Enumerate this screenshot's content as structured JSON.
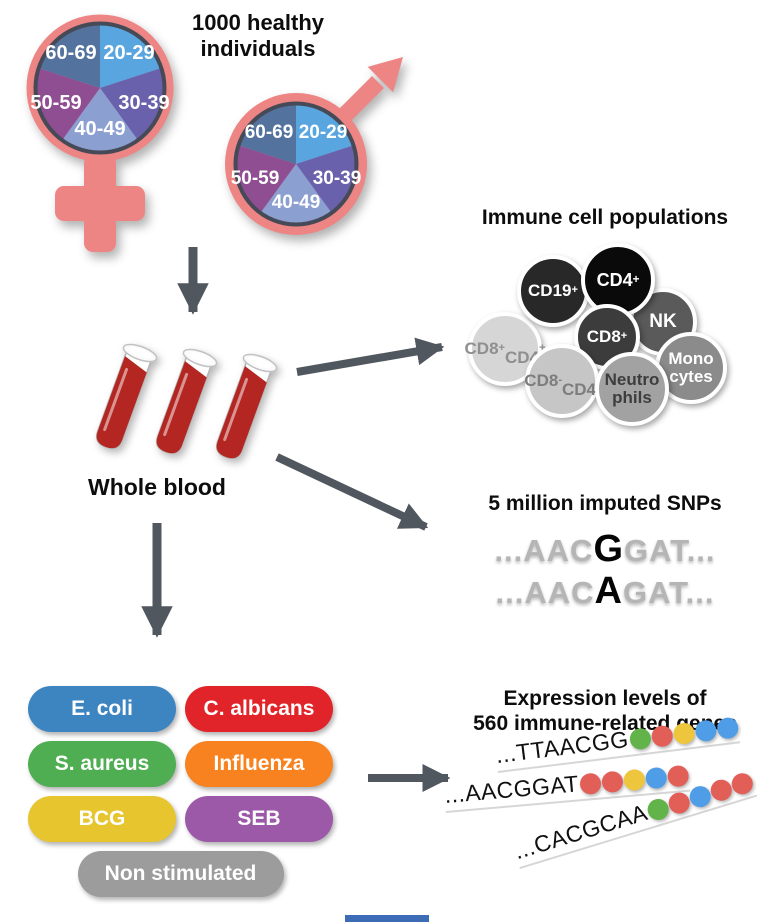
{
  "study_title": "1000 healthy individuals",
  "age_groups": [
    "20-29",
    "30-39",
    "40-49",
    "50-59",
    "60-69"
  ],
  "whole_blood_label": "Whole blood",
  "immune": {
    "title": "Immune cell populations",
    "cells": [
      {
        "name": "cd8pos-cd4pos",
        "lines": [
          [
            {
              "t": "CD8",
              "s": "+"
            }
          ],
          [
            {
              "t": "CD4",
              "s": "+"
            }
          ]
        ],
        "bg": "#d6d6d6",
        "fg": "#8f8f8f"
      },
      {
        "name": "cd19pos",
        "lines": [
          [
            {
              "t": "CD19",
              "s": "+"
            }
          ]
        ],
        "bg": "#282828",
        "fg": "#ffffff"
      },
      {
        "name": "nk",
        "lines": [
          [
            {
              "t": "NK"
            }
          ]
        ],
        "bg": "#5a5a5a",
        "fg": "#ffffff"
      },
      {
        "name": "cd4pos",
        "lines": [
          [
            {
              "t": "CD4",
              "s": "+"
            }
          ]
        ],
        "bg": "#0a0a0a",
        "fg": "#ffffff"
      },
      {
        "name": "monocytes",
        "lines": [
          [
            {
              "t": "Mono"
            }
          ],
          [
            {
              "t": "cytes"
            }
          ]
        ],
        "bg": "#8b8b8b",
        "fg": "#ffffff"
      },
      {
        "name": "cd8pos",
        "lines": [
          [
            {
              "t": "CD8",
              "s": "+"
            }
          ]
        ],
        "bg": "#3c3c3c",
        "fg": "#ffffff"
      },
      {
        "name": "cd8neg-cd4neg",
        "lines": [
          [
            {
              "t": "CD8",
              "s": "-"
            }
          ],
          [
            {
              "t": "CD4",
              "s": "-"
            }
          ]
        ],
        "bg": "#c6c6c6",
        "fg": "#7d7d7d"
      },
      {
        "name": "neutrophils",
        "lines": [
          [
            {
              "t": "Neutro"
            }
          ],
          [
            {
              "t": "phils"
            }
          ]
        ],
        "bg": "#a2a2a2",
        "fg": "#3d3d3d"
      }
    ]
  },
  "snps": {
    "title": "5 million imputed SNPs",
    "rows": [
      {
        "pre": "...AAC",
        "variant": "G",
        "post": "GAT..."
      },
      {
        "pre": "...AAC",
        "variant": "A",
        "post": "GAT..."
      }
    ]
  },
  "stimuli": [
    {
      "label": "E. coli",
      "color": "#3d85c0"
    },
    {
      "label": "C. albicans",
      "color": "#e1242a"
    },
    {
      "label": "S. aureus",
      "color": "#4fae52"
    },
    {
      "label": "Influenza",
      "color": "#f8821f"
    },
    {
      "label": "BCG",
      "color": "#e6c52f"
    },
    {
      "label": "SEB",
      "color": "#9b59a7"
    },
    {
      "label": "Non stimulated",
      "color": "#9c9c9c"
    }
  ],
  "expression": {
    "title_line1": "Expression levels of",
    "title_line2": "560 immune-related genes",
    "rows": [
      {
        "seq": "...TTAACGG",
        "dots": [
          "green",
          "red",
          "yellow",
          "blue",
          "blue"
        ]
      },
      {
        "seq": "...AACGGAT",
        "dots": [
          "red",
          "red",
          "yellow",
          "blue",
          "red"
        ]
      },
      {
        "seq": "...CACGCAA",
        "dots": [
          "green",
          "red",
          "blue",
          "red",
          "red"
        ]
      }
    ],
    "dot_palette": {
      "green": "#62b44a",
      "red": "#e25f58",
      "yellow": "#edc63d",
      "blue": "#4f9de6"
    }
  },
  "colors": {
    "pink": "#ee8585",
    "pie": [
      "#58a5e0",
      "#6a61ad",
      "#8c9fd1",
      "#8f4d92",
      "#53739e"
    ],
    "pie_border": "#454a56",
    "arrow": "#51575f",
    "blood": "#b32622",
    "footer_strip": "#3c6cb5"
  }
}
